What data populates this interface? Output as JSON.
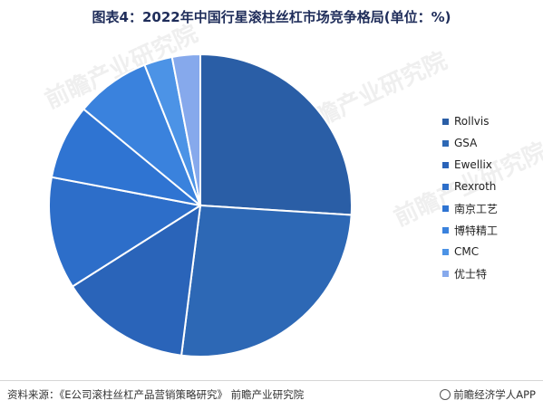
{
  "title": "图表4：2022年中国行星滚柱丝杠市场竞争格局(单位：%)",
  "source": "资料来源：《E公司滚柱丝杠产品营销策略研究》 前瞻产业研究院",
  "brand": "前瞻经济学人APP",
  "watermark": "前瞻产业研究院",
  "colors": {
    "slices": [
      "#2a5ea6",
      "#2d68b5",
      "#2a64b9",
      "#2d6ec9",
      "#2f74d2",
      "#3a82dd",
      "#4c93e6",
      "#86a9ec"
    ]
  },
  "chart_data": {
    "type": "pie",
    "title": "2022年中国行星滚柱丝杠市场竞争格局",
    "unit": "%",
    "start_angle_deg": 0,
    "direction": "clockwise",
    "labels": [
      "Rollvis",
      "GSA",
      "Ewellix",
      "Rexroth",
      "南京工艺",
      "博特精工",
      "CMC",
      "优士特"
    ],
    "values": [
      26,
      26,
      14,
      12,
      8,
      8,
      3,
      3
    ],
    "legend_position": "right"
  }
}
